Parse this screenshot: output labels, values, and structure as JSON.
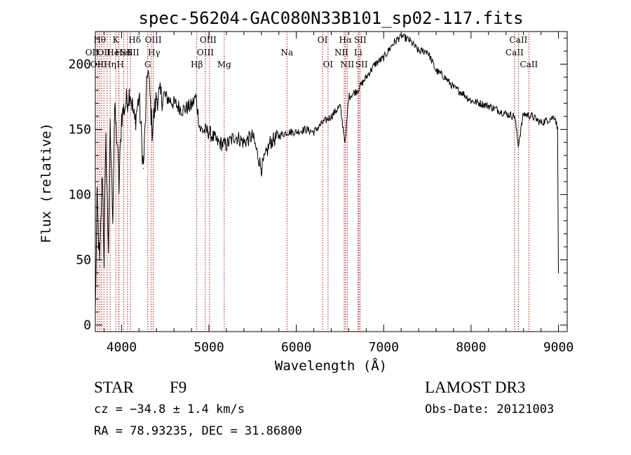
{
  "chart_data": {
    "type": "line",
    "title": "spec-56204-GAC080N33B101_sp02-117.fits",
    "xlabel": "Wavelength (Å)",
    "ylabel": "Flux (relative)",
    "xlim": [
      3700,
      9100
    ],
    "ylim": [
      -5,
      225
    ],
    "x_ticks": [
      4000,
      5000,
      6000,
      7000,
      8000,
      9000
    ],
    "x_tick_labels": [
      "4000",
      "5000",
      "6000",
      "7000",
      "8000",
      "9000"
    ],
    "y_ticks": [
      0,
      50,
      100,
      150,
      200
    ],
    "y_tick_labels": [
      "0",
      "50",
      "100",
      "150",
      "200"
    ],
    "series": [
      {
        "name": "flux",
        "x": [
          3700,
          3720,
          3750,
          3780,
          3800,
          3820,
          3850,
          3870,
          3900,
          3920,
          3950,
          3970,
          4000,
          4050,
          4100,
          4150,
          4200,
          4250,
          4300,
          4350,
          4400,
          4500,
          4600,
          4700,
          4800,
          4850,
          4900,
          5000,
          5100,
          5200,
          5300,
          5400,
          5500,
          5600,
          5700,
          5800,
          5900,
          6000,
          6100,
          6200,
          6300,
          6400,
          6500,
          6560,
          6600,
          6700,
          6800,
          6900,
          7000,
          7100,
          7200,
          7300,
          7400,
          7500,
          7600,
          7700,
          7800,
          7900,
          8000,
          8100,
          8200,
          8300,
          8400,
          8500,
          8540,
          8600,
          8700,
          8800,
          8900,
          8960,
          8990,
          9000
        ],
        "y": [
          10,
          95,
          45,
          120,
          50,
          140,
          60,
          150,
          85,
          165,
          140,
          105,
          160,
          170,
          180,
          155,
          175,
          120,
          200,
          150,
          175,
          175,
          170,
          165,
          168,
          175,
          150,
          148,
          140,
          138,
          145,
          140,
          145,
          120,
          140,
          145,
          148,
          148,
          150,
          148,
          155,
          160,
          168,
          140,
          175,
          180,
          190,
          200,
          205,
          215,
          222,
          218,
          210,
          210,
          195,
          190,
          182,
          178,
          172,
          170,
          168,
          165,
          162,
          160,
          138,
          162,
          160,
          155,
          158,
          160,
          150,
          40
        ]
      }
    ],
    "spectral_lines": [
      {
        "wavelength": 3727,
        "label": "OII",
        "row": 2,
        "dx": -8
      },
      {
        "wavelength": 3750,
        "label": "Hθ",
        "row": 1,
        "dx": 0
      },
      {
        "wavelength": 3771,
        "label": "OIII",
        "row": 3,
        "dx": -4
      },
      {
        "wavelength": 3798,
        "label": "OII",
        "row": 2,
        "dx": 0
      },
      {
        "wavelength": 3835,
        "label": "Hη",
        "row": 3,
        "dx": 4
      },
      {
        "wavelength": 3869,
        "label": "He",
        "row": 2,
        "dx": 4
      },
      {
        "wavelength": 3934,
        "label": "K",
        "row": 1,
        "dx": 0
      },
      {
        "wavelength": 3968,
        "label": "HeI",
        "row": 2,
        "dx": 6
      },
      {
        "wavelength": 3970,
        "label": "H",
        "row": 3,
        "dx": 2
      },
      {
        "wavelength": 4026,
        "label": "SII",
        "row": 2,
        "dx": 4
      },
      {
        "wavelength": 4102,
        "label": "Hδ",
        "row": 1,
        "dx": 6
      },
      {
        "wavelength": 4068,
        "label": "SII",
        "row": 2,
        "dx": 8
      },
      {
        "wavelength": 4300,
        "label": "G",
        "row": 3,
        "dx": 0
      },
      {
        "wavelength": 4340,
        "label": "Hγ",
        "row": 2,
        "dx": 4
      },
      {
        "wavelength": 4363,
        "label": "OIII",
        "row": 1,
        "dx": 0
      },
      {
        "wavelength": 4861,
        "label": "Hβ",
        "row": 3,
        "dx": 0
      },
      {
        "wavelength": 4959,
        "label": "OIII",
        "row": 2,
        "dx": 0
      },
      {
        "wavelength": 5007,
        "label": "OIII",
        "row": 1,
        "dx": -2
      },
      {
        "wavelength": 5175,
        "label": "Mg",
        "row": 3,
        "dx": 0
      },
      {
        "wavelength": 5893,
        "label": "Na",
        "row": 2,
        "dx": 0
      },
      {
        "wavelength": 6300,
        "label": "OI",
        "row": 1,
        "dx": 0
      },
      {
        "wavelength": 6363,
        "label": "OI",
        "row": 3,
        "dx": 0
      },
      {
        "wavelength": 6548,
        "label": "NII",
        "row": 2,
        "dx": -4
      },
      {
        "wavelength": 6563,
        "label": "Hα",
        "row": 1,
        "dx": 0
      },
      {
        "wavelength": 6583,
        "label": "NII",
        "row": 3,
        "dx": 0
      },
      {
        "wavelength": 6707,
        "label": "Li",
        "row": 2,
        "dx": 0
      },
      {
        "wavelength": 6716,
        "label": "SII",
        "row": 1,
        "dx": 2
      },
      {
        "wavelength": 6731,
        "label": "SII",
        "row": 3,
        "dx": 2
      },
      {
        "wavelength": 8498,
        "label": "CaII",
        "row": 2,
        "dx": 0
      },
      {
        "wavelength": 8542,
        "label": "CaII",
        "row": 1,
        "dx": 0
      },
      {
        "wavelength": 8662,
        "label": "CaII",
        "row": 3,
        "dx": 0
      }
    ],
    "line_color": "#000000",
    "marker_color": "#b01010"
  },
  "footer": {
    "class": "STAR",
    "subclass": "F9",
    "survey": "LAMOST DR3",
    "cz": "cz = −34.8 ± 1.4 km/s",
    "obs_date": "Obs-Date: 20121003",
    "coords": "RA =  78.93235, DEC =  31.86800"
  }
}
